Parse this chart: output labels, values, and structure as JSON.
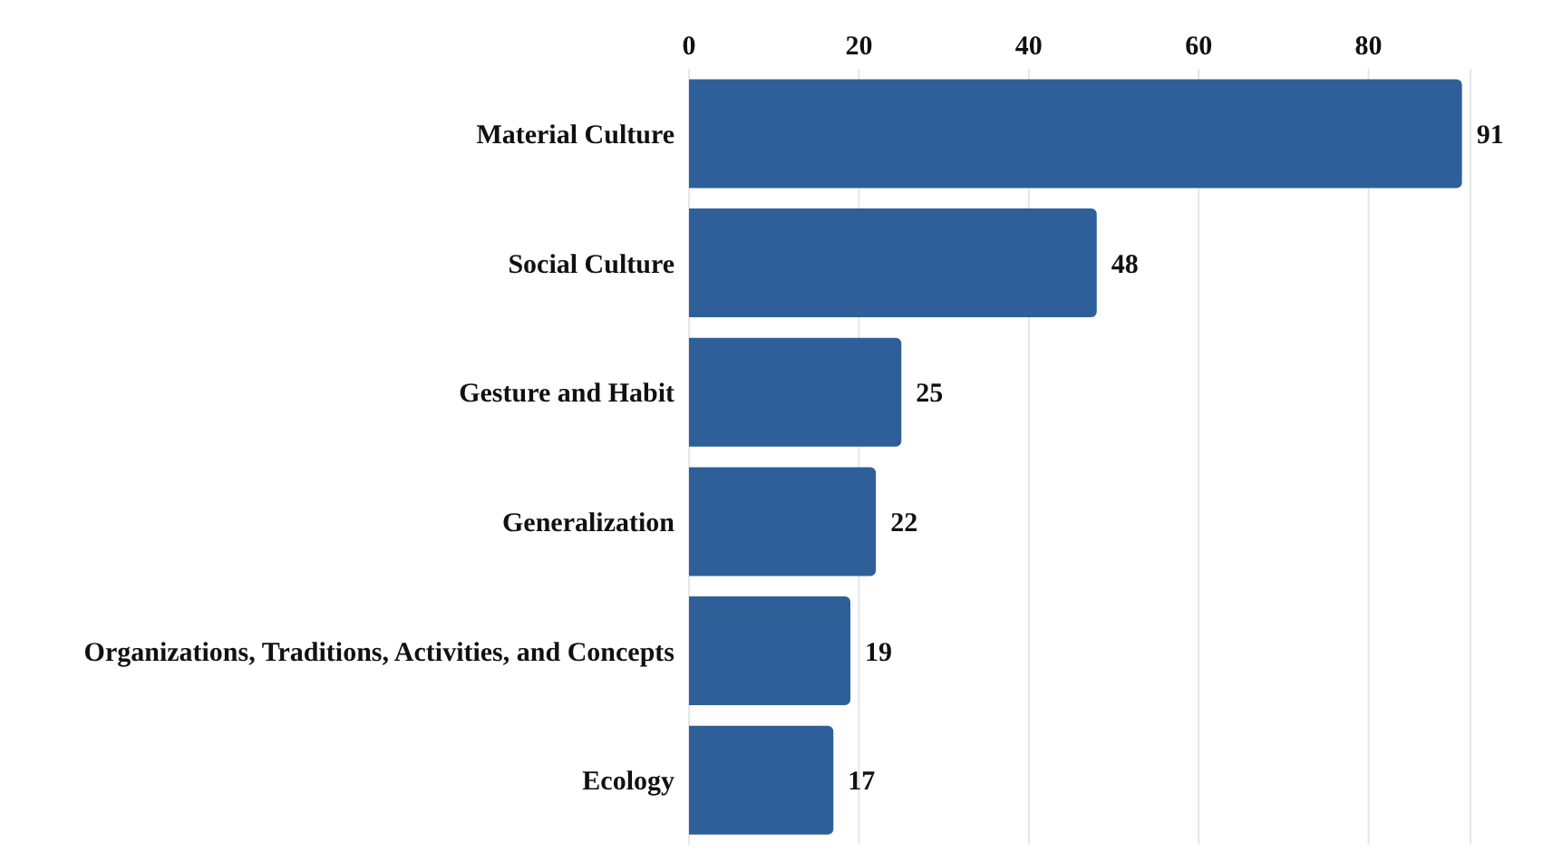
{
  "chart_data": {
    "type": "bar",
    "orientation": "horizontal",
    "categories": [
      "Material Culture",
      "Social Culture",
      "Gesture and Habit",
      "Generalization",
      "Organizations, Traditions, Activities, and Concepts",
      "Ecology"
    ],
    "values": [
      91,
      48,
      25,
      22,
      19,
      17
    ],
    "color": "#2e5f98",
    "xlim": [
      0,
      92
    ],
    "xticks": [
      0,
      20,
      40,
      60,
      80
    ],
    "grid": "x",
    "data_labels": true
  }
}
